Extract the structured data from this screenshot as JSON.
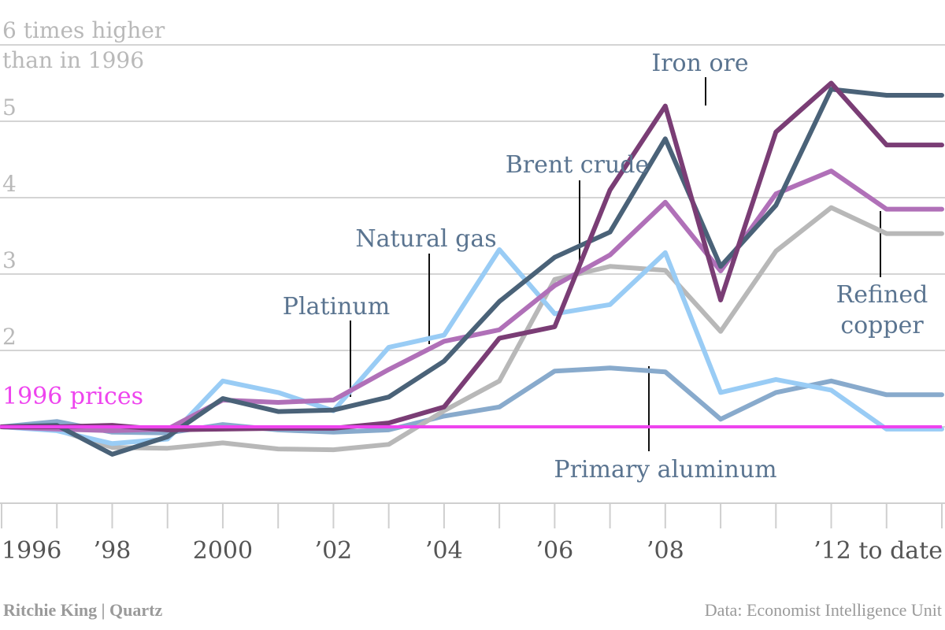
{
  "chart_data": {
    "type": "line",
    "title": "",
    "ylabel_top_line1": "6 times higher",
    "ylabel_top_line2": "than in 1996",
    "x": [
      1996,
      1997,
      1998,
      1999,
      2000,
      2001,
      2002,
      2003,
      2004,
      2005,
      2006,
      2007,
      2008,
      2009,
      2010,
      2011,
      2012,
      2013
    ],
    "x_tick_labels": [
      {
        "x": 1996,
        "label": "1996"
      },
      {
        "x": 1998,
        "label": "’98"
      },
      {
        "x": 2000,
        "label": "2000"
      },
      {
        "x": 2002,
        "label": "’02"
      },
      {
        "x": 2004,
        "label": "’04"
      },
      {
        "x": 2006,
        "label": "’06"
      },
      {
        "x": 2008,
        "label": "’08"
      },
      {
        "x": 2012,
        "label": "’12 to date"
      }
    ],
    "y_ticks": [
      {
        "y": 2,
        "label": "2"
      },
      {
        "y": 3,
        "label": "3"
      },
      {
        "y": 4,
        "label": "4"
      },
      {
        "y": 5,
        "label": "5"
      }
    ],
    "ylim": [
      0,
      6
    ],
    "grid": true,
    "baseline": {
      "y": 1,
      "label": "1996 prices",
      "color": "#ee44ee"
    },
    "series": [
      {
        "name": "Primary aluminum",
        "color": "#88aacc",
        "values": [
          1.0,
          1.07,
          0.93,
          0.92,
          1.03,
          0.96,
          0.93,
          0.96,
          1.14,
          1.26,
          1.73,
          1.77,
          1.72,
          1.1,
          1.45,
          1.6,
          1.42,
          1.42
        ]
      },
      {
        "name": "Refined copper",
        "color": "#b8b8b8",
        "values": [
          1.0,
          0.96,
          0.73,
          0.72,
          0.79,
          0.71,
          0.7,
          0.77,
          1.21,
          1.6,
          2.93,
          3.1,
          3.05,
          2.25,
          3.3,
          3.87,
          3.53,
          3.53
        ]
      },
      {
        "name": "Natural gas",
        "color": "#99ccf5",
        "values": [
          1.0,
          0.95,
          0.78,
          0.84,
          1.6,
          1.45,
          1.21,
          2.04,
          2.2,
          3.32,
          2.48,
          2.6,
          3.28,
          1.45,
          1.62,
          1.48,
          0.97,
          0.97
        ]
      },
      {
        "name": "Platinum",
        "color": "#b070b8",
        "values": [
          1.0,
          0.97,
          0.95,
          0.97,
          1.35,
          1.32,
          1.35,
          1.75,
          2.12,
          2.27,
          2.85,
          3.25,
          3.94,
          3.04,
          4.05,
          4.35,
          3.85,
          3.85
        ]
      },
      {
        "name": "Brent crude",
        "color": "#4a6278",
        "values": [
          1.0,
          1.02,
          0.64,
          0.87,
          1.37,
          1.2,
          1.22,
          1.39,
          1.86,
          2.64,
          3.22,
          3.55,
          4.77,
          3.1,
          3.9,
          5.42,
          5.34,
          5.34
        ]
      },
      {
        "name": "Iron ore",
        "color": "#7a3d75",
        "values": [
          1.0,
          1.0,
          1.02,
          0.96,
          0.97,
          0.98,
          0.98,
          1.05,
          1.26,
          2.16,
          2.31,
          4.1,
          5.2,
          2.66,
          4.86,
          5.5,
          4.69,
          4.69
        ]
      }
    ],
    "annotations": [
      {
        "text": "Iron ore"
      },
      {
        "text": "Brent crude"
      },
      {
        "text": "Natural gas"
      },
      {
        "text": "Platinum"
      },
      {
        "text": "Refined",
        "text2": "copper"
      },
      {
        "text": "Primary aluminum"
      }
    ]
  },
  "footer": {
    "credit": "Ritchie King | Quartz",
    "source": "Data: Economist Intelligence Unit"
  }
}
